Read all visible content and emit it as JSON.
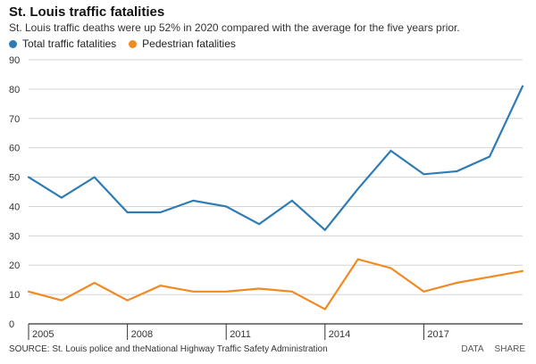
{
  "header": {
    "title": "St. Louis traffic fatalities",
    "subtitle": "St. Louis traffic deaths were up 52% in 2020 compared with the average for the five years prior."
  },
  "footer": {
    "source": "SOURCE: St. Louis police and theNational Highway Traffic Safety Administration",
    "data_label": "DATA",
    "share_label": "SHARE"
  },
  "colors": {
    "total": "#2e7cb3",
    "pedestrian": "#f08a24",
    "grid": "#d4d4d4",
    "axis": "#333333"
  },
  "chart_data": {
    "type": "line",
    "title": "St. Louis traffic fatalities",
    "x_ticks": [
      "2005",
      "2008",
      "2011",
      "2014",
      "2017"
    ],
    "ylim": [
      0,
      90
    ],
    "y_ticks": [
      0,
      10,
      20,
      30,
      40,
      50,
      60,
      70,
      80,
      90
    ],
    "grid": true,
    "legend_position": "top-left",
    "series": [
      {
        "name": "Total traffic fatalities",
        "color": "#2e7cb3",
        "x": [
          2005,
          2006,
          2007,
          2008,
          2009,
          2010,
          2011,
          2012,
          2013,
          2014,
          2015,
          2016,
          2017,
          2018,
          2019,
          2020
        ],
        "values": [
          50,
          43,
          50,
          38,
          38,
          42,
          40,
          34,
          42,
          32,
          46,
          59,
          51,
          52,
          57,
          81
        ]
      },
      {
        "name": "Pedestrian fatalities",
        "color": "#f08a24",
        "x": [
          2005,
          2006,
          2007,
          2008,
          2009,
          2010,
          2011,
          2012,
          2013,
          2014,
          2015,
          2016,
          2017,
          2018,
          2019,
          2020
        ],
        "values": [
          11,
          8,
          14,
          8,
          13,
          11,
          11,
          12,
          11,
          5,
          22,
          19,
          11,
          14,
          16,
          18
        ]
      }
    ]
  }
}
